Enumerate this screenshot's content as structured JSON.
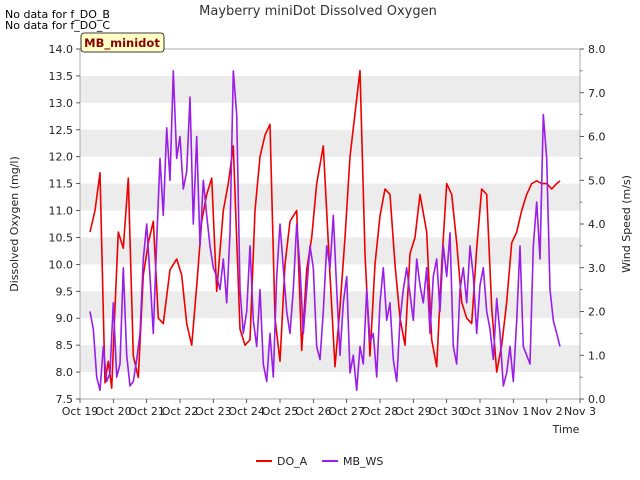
{
  "notes": [
    "No data for f_DO_B",
    "No data for f_DO_C"
  ],
  "site_badge": "MB_minidot",
  "chart_data": {
    "type": "line",
    "title": "Mayberry miniDot Dissolved Oxygen",
    "xlabel": "Time",
    "ylabel": "Dissolved Oxygen (mg/l)",
    "y2label": "Wind Speed (m/s)",
    "ylim": [
      7.5,
      14.0
    ],
    "y2lim": [
      0.0,
      8.0
    ],
    "x_tick_labels": [
      "Oct 19",
      "Oct 20",
      "Oct 21",
      "Oct 22",
      "Oct 23",
      "Oct 24",
      "Oct 25",
      "Oct 26",
      "Oct 27",
      "Oct 28",
      "Oct 29",
      "Oct 30",
      "Oct 31",
      "Nov 1",
      "Nov 2",
      "Nov 3"
    ],
    "y_tick_labels": [
      "7.5",
      "8.0",
      "8.5",
      "9.0",
      "9.5",
      "10.0",
      "10.5",
      "11.0",
      "11.5",
      "12.0",
      "12.5",
      "13.0",
      "13.5",
      "14.0"
    ],
    "y2_tick_labels": [
      "0.0",
      "1.0",
      "2.0",
      "3.0",
      "4.0",
      "5.0",
      "6.0",
      "7.0",
      "8.0"
    ],
    "legend_position": "bottom",
    "grid": "horizontal bands",
    "series": [
      {
        "name": "DO_A",
        "axis": "left",
        "color": "#ee0000",
        "x": [
          0.3,
          0.45,
          0.6,
          0.75,
          0.85,
          0.95,
          1.05,
          1.15,
          1.3,
          1.45,
          1.6,
          1.75,
          1.9,
          2.05,
          2.2,
          2.35,
          2.5,
          2.7,
          2.9,
          3.05,
          3.2,
          3.35,
          3.5,
          3.65,
          3.8,
          3.95,
          4.1,
          4.3,
          4.45,
          4.6,
          4.8,
          4.95,
          5.1,
          5.25,
          5.4,
          5.55,
          5.7,
          5.85,
          6.0,
          6.15,
          6.3,
          6.5,
          6.65,
          6.8,
          6.95,
          7.1,
          7.3,
          7.5,
          7.65,
          7.8,
          7.95,
          8.1,
          8.25,
          8.4,
          8.55,
          8.7,
          8.85,
          9.0,
          9.15,
          9.3,
          9.45,
          9.6,
          9.75,
          9.9,
          10.05,
          10.2,
          10.4,
          10.55,
          10.7,
          10.85,
          11.0,
          11.15,
          11.3,
          11.45,
          11.6,
          11.75,
          11.9,
          12.05,
          12.2,
          12.35,
          12.5,
          12.65,
          12.8,
          12.95,
          13.1,
          13.25,
          13.4,
          13.55,
          13.7,
          13.85,
          14.0,
          14.15,
          14.3,
          14.4
        ],
        "values": [
          10.6,
          11.0,
          11.7,
          7.8,
          8.2,
          7.7,
          9.2,
          10.6,
          10.3,
          11.6,
          8.3,
          7.9,
          9.8,
          10.4,
          10.8,
          9.0,
          8.9,
          9.9,
          10.1,
          9.8,
          8.9,
          8.5,
          9.6,
          10.8,
          11.3,
          11.6,
          9.5,
          11.0,
          11.5,
          12.2,
          8.8,
          8.5,
          8.6,
          11.0,
          12.0,
          12.4,
          12.6,
          9.0,
          8.2,
          10.0,
          10.8,
          11.0,
          8.4,
          9.9,
          10.5,
          11.5,
          12.2,
          9.8,
          8.1,
          9.2,
          10.5,
          12.0,
          12.8,
          13.6,
          10.2,
          8.3,
          10.0,
          10.9,
          11.4,
          11.3,
          10.0,
          9.0,
          8.5,
          10.2,
          10.5,
          11.3,
          10.6,
          8.6,
          8.1,
          10.0,
          11.5,
          11.3,
          10.4,
          9.3,
          9.0,
          8.9,
          10.3,
          11.4,
          11.3,
          9.2,
          8.0,
          8.5,
          9.3,
          10.4,
          10.6,
          11.0,
          11.3,
          11.5,
          11.55,
          11.5,
          11.5,
          11.4,
          11.5,
          11.55
        ]
      },
      {
        "name": "MB_WS",
        "axis": "right",
        "color": "#9a1ee8",
        "x": [
          0.3,
          0.4,
          0.5,
          0.6,
          0.7,
          0.8,
          0.9,
          1.0,
          1.1,
          1.2,
          1.3,
          1.4,
          1.5,
          1.6,
          1.7,
          1.8,
          1.9,
          2.0,
          2.1,
          2.2,
          2.3,
          2.4,
          2.5,
          2.6,
          2.7,
          2.8,
          2.9,
          3.0,
          3.1,
          3.2,
          3.3,
          3.4,
          3.5,
          3.6,
          3.7,
          3.8,
          3.9,
          4.0,
          4.1,
          4.2,
          4.3,
          4.4,
          4.5,
          4.6,
          4.7,
          4.8,
          4.9,
          5.0,
          5.1,
          5.2,
          5.3,
          5.4,
          5.5,
          5.6,
          5.7,
          5.8,
          5.9,
          6.0,
          6.1,
          6.2,
          6.3,
          6.4,
          6.5,
          6.6,
          6.7,
          6.8,
          6.9,
          7.0,
          7.1,
          7.2,
          7.3,
          7.4,
          7.5,
          7.6,
          7.7,
          7.8,
          7.9,
          8.0,
          8.1,
          8.2,
          8.3,
          8.4,
          8.5,
          8.6,
          8.7,
          8.8,
          8.9,
          9.0,
          9.1,
          9.2,
          9.3,
          9.4,
          9.5,
          9.6,
          9.7,
          9.8,
          9.9,
          10.0,
          10.1,
          10.2,
          10.3,
          10.4,
          10.5,
          10.6,
          10.7,
          10.8,
          10.9,
          11.0,
          11.1,
          11.2,
          11.3,
          11.4,
          11.5,
          11.6,
          11.7,
          11.8,
          11.9,
          12.0,
          12.1,
          12.2,
          12.3,
          12.4,
          12.5,
          12.6,
          12.7,
          12.8,
          12.9,
          13.0,
          13.1,
          13.2,
          13.3,
          13.4,
          13.5,
          13.6,
          13.7,
          13.8,
          13.9,
          14.0,
          14.1,
          14.2,
          14.3,
          14.4
        ],
        "values": [
          2.0,
          1.6,
          0.5,
          0.2,
          1.2,
          0.4,
          0.6,
          2.2,
          0.5,
          0.8,
          3.0,
          1.0,
          0.3,
          0.4,
          0.9,
          1.5,
          3.2,
          4.0,
          2.8,
          1.5,
          3.6,
          5.5,
          4.2,
          6.2,
          5.0,
          7.5,
          5.5,
          6.0,
          4.8,
          5.2,
          6.9,
          4.0,
          6.0,
          3.5,
          5.0,
          4.2,
          3.5,
          3.0,
          2.8,
          2.5,
          3.2,
          2.2,
          3.8,
          7.5,
          6.5,
          2.5,
          1.5,
          2.0,
          3.5,
          1.8,
          1.2,
          2.5,
          0.8,
          0.4,
          1.5,
          0.5,
          2.8,
          4.0,
          3.0,
          2.0,
          1.5,
          2.5,
          4.0,
          3.0,
          1.5,
          2.5,
          3.5,
          3.0,
          1.2,
          0.9,
          2.0,
          3.5,
          3.0,
          4.2,
          2.5,
          1.0,
          2.2,
          2.8,
          0.6,
          1.0,
          0.2,
          1.2,
          0.8,
          2.5,
          1.3,
          1.5,
          0.5,
          2.2,
          3.0,
          1.8,
          2.2,
          0.9,
          0.4,
          1.8,
          2.5,
          3.0,
          2.4,
          1.8,
          3.2,
          2.6,
          2.2,
          3.0,
          1.5,
          2.8,
          3.2,
          2.0,
          3.5,
          2.8,
          3.8,
          1.2,
          0.8,
          2.5,
          3.0,
          2.2,
          3.5,
          2.8,
          1.5,
          2.6,
          3.0,
          2.0,
          1.6,
          0.9,
          2.3,
          1.5,
          0.3,
          0.6,
          1.2,
          0.4,
          1.8,
          3.5,
          1.2,
          1.0,
          0.8,
          3.5,
          4.5,
          3.2,
          6.5,
          5.5,
          2.5,
          1.8,
          1.5,
          1.2
        ]
      }
    ]
  }
}
